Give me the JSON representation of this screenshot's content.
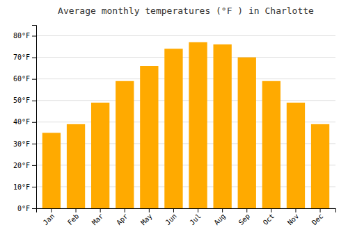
{
  "chart_data": {
    "type": "bar",
    "title": "Average monthly temperatures (°F ) in Charlotte",
    "categories": [
      "Jan",
      "Feb",
      "Mar",
      "Apr",
      "May",
      "Jun",
      "Jul",
      "Aug",
      "Sep",
      "Oct",
      "Nov",
      "Dec"
    ],
    "values": [
      35,
      39,
      49,
      59,
      66,
      74,
      77,
      76,
      70,
      59,
      49,
      39
    ],
    "color": "#FFAA00",
    "ylim": [
      0,
      85
    ],
    "yticks": [
      {
        "value": 0,
        "label": "0°F"
      },
      {
        "value": 10,
        "label": "10°F"
      },
      {
        "value": 20,
        "label": "20°F"
      },
      {
        "value": 30,
        "label": "30°F"
      },
      {
        "value": 40,
        "label": "40°F"
      },
      {
        "value": 50,
        "label": "50°F"
      },
      {
        "value": 60,
        "label": "60°F"
      },
      {
        "value": 70,
        "label": "70°F"
      },
      {
        "value": 80,
        "label": "80°F"
      }
    ],
    "grid": true
  }
}
